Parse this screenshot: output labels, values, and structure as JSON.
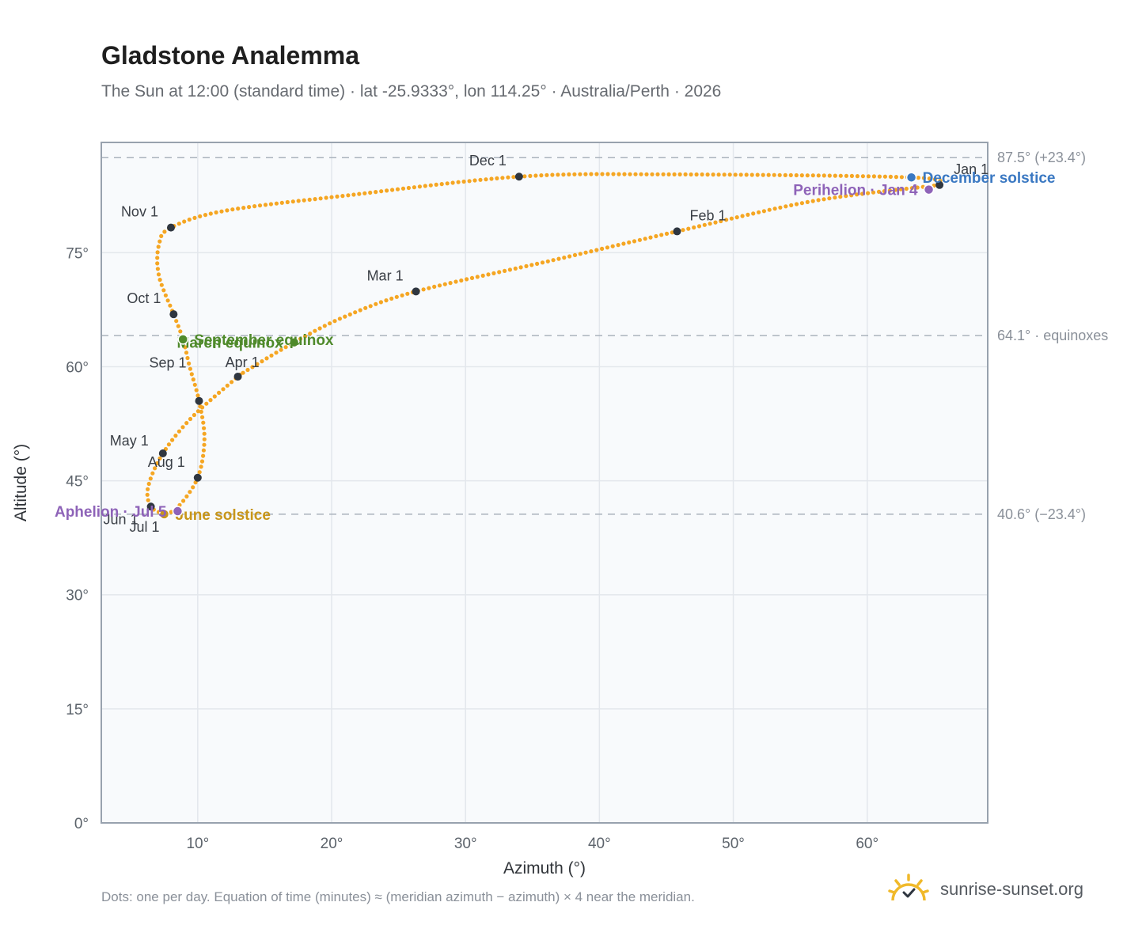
{
  "title": "Gladstone Analemma",
  "subtitle": "The Sun at 12:00 (standard time) · lat -25.9333°, lon 114.25° · Australia/Perth · 2026",
  "footnote": "Dots: one per day. Equation of time (minutes) ≈ (meridian azimuth − azimuth) × 4 near the meridian.",
  "brand": {
    "text": "sunrise-sunset.org",
    "icon": "sun-check-icon"
  },
  "colors": {
    "curve": "#f5a623",
    "month_marker": "#2f3640",
    "equinox": "#4f8a2b",
    "december_solstice": "#3a78c2",
    "june_solstice": "#c8961a",
    "apsis": "#8e63b8",
    "plot_bg": "#f8fafc",
    "grid": "#e3e7ec",
    "reference_line": "#aab3bd",
    "frame": "#98a2ae"
  },
  "chart_data": {
    "type": "scatter",
    "title": "Gladstone Analemma",
    "xlabel": "Azimuth (°)",
    "ylabel": "Altitude (°)",
    "xlim": [
      2.8,
      69
    ],
    "ylim": [
      0,
      89.5
    ],
    "x_ticks": [
      10,
      20,
      30,
      40,
      50,
      60
    ],
    "x_tick_labels": [
      "10°",
      "20°",
      "30°",
      "40°",
      "50°",
      "60°"
    ],
    "y_ticks": [
      0,
      15,
      30,
      45,
      60,
      75
    ],
    "y_tick_labels": [
      "0°",
      "15°",
      "30°",
      "45°",
      "60°",
      "75°"
    ],
    "grid": true,
    "marker_note": "one dot per day",
    "curve_keypoints": [
      {
        "date": "Jan 1",
        "az": 65.4,
        "alt": 83.9
      },
      {
        "date": "Jan 15",
        "az": 56.0,
        "alt": 81.8
      },
      {
        "date": "Feb 1",
        "az": 45.8,
        "alt": 77.8
      },
      {
        "date": "Feb 15",
        "az": 36.5,
        "alt": 74.0
      },
      {
        "date": "Mar 1",
        "az": 26.3,
        "alt": 69.9
      },
      {
        "date": "Mar 10",
        "az": 21.0,
        "alt": 66.6
      },
      {
        "date": "Mar 20",
        "az": 17.2,
        "alt": 63.2
      },
      {
        "date": "Mar 31",
        "az": 13.2,
        "alt": 59.0
      },
      {
        "date": "Apr 1",
        "az": 13.0,
        "alt": 58.7
      },
      {
        "date": "Apr 15",
        "az": 9.6,
        "alt": 53.4
      },
      {
        "date": "May 1",
        "az": 7.4,
        "alt": 48.6
      },
      {
        "date": "May 15",
        "az": 6.3,
        "alt": 44.2
      },
      {
        "date": "Jun 1",
        "az": 6.5,
        "alt": 41.6
      },
      {
        "date": "Jun 21",
        "az": 7.5,
        "alt": 40.6
      },
      {
        "date": "Jul 1",
        "az": 7.5,
        "alt": 40.6
      },
      {
        "date": "Jul 15",
        "az": 8.5,
        "alt": 41.5
      },
      {
        "date": "Aug 1",
        "az": 10.0,
        "alt": 45.4
      },
      {
        "date": "Aug 15",
        "az": 10.5,
        "alt": 50.5
      },
      {
        "date": "Sep 1",
        "az": 10.1,
        "alt": 55.5
      },
      {
        "date": "Sep 12",
        "az": 9.4,
        "alt": 60.0
      },
      {
        "date": "Sep 22",
        "az": 8.9,
        "alt": 63.6
      },
      {
        "date": "Oct 1",
        "az": 8.2,
        "alt": 66.9
      },
      {
        "date": "Oct 15",
        "az": 7.1,
        "alt": 72.0
      },
      {
        "date": "Oct 25",
        "az": 7.1,
        "alt": 76.0
      },
      {
        "date": "Nov 1",
        "az": 8.0,
        "alt": 78.3
      },
      {
        "date": "Nov 10",
        "az": 12.0,
        "alt": 80.5
      },
      {
        "date": "Nov 20",
        "az": 21.0,
        "alt": 82.5
      },
      {
        "date": "Dec 1",
        "az": 34.0,
        "alt": 85.0
      },
      {
        "date": "Dec 10",
        "az": 45.0,
        "alt": 85.3
      },
      {
        "date": "Dec 21",
        "az": 63.3,
        "alt": 84.9
      },
      {
        "date": "Dec 31",
        "az": 65.4,
        "alt": 83.9
      }
    ],
    "month_markers": [
      {
        "label": "Jan 1",
        "az": 65.4,
        "alt": 83.9
      },
      {
        "label": "Feb 1",
        "az": 45.8,
        "alt": 77.8
      },
      {
        "label": "Mar 1",
        "az": 26.3,
        "alt": 69.9
      },
      {
        "label": "Apr 1",
        "az": 13.0,
        "alt": 58.7
      },
      {
        "label": "May 1",
        "az": 7.4,
        "alt": 48.6
      },
      {
        "label": "Jun 1",
        "az": 6.5,
        "alt": 41.6
      },
      {
        "label": "Jul 1",
        "az": 7.5,
        "alt": 40.6
      },
      {
        "label": "Aug 1",
        "az": 10.0,
        "alt": 45.4
      },
      {
        "label": "Sep 1",
        "az": 10.1,
        "alt": 55.5
      },
      {
        "label": "Oct 1",
        "az": 8.2,
        "alt": 66.9
      },
      {
        "label": "Nov 1",
        "az": 8.0,
        "alt": 78.3
      },
      {
        "label": "Dec 1",
        "az": 34.0,
        "alt": 85.0
      }
    ],
    "events": [
      {
        "label": "March equinox",
        "az": 17.2,
        "alt": 63.2,
        "color": "#4f8a2b",
        "anchor": "end"
      },
      {
        "label": "September equinox",
        "az": 8.9,
        "alt": 63.6,
        "color": "#4f8a2b",
        "anchor": "start"
      },
      {
        "label": "December solstice",
        "az": 63.3,
        "alt": 84.9,
        "color": "#3a78c2",
        "anchor": "start"
      },
      {
        "label": "June solstice",
        "az": 7.5,
        "alt": 40.6,
        "color": "#c8961a",
        "anchor": "start"
      },
      {
        "label": "Perihelion · Jan 4",
        "az": 64.6,
        "alt": 83.3,
        "color": "#8e63b8",
        "anchor": "end"
      },
      {
        "label": "Aphelion · Jul 5",
        "az": 8.5,
        "alt": 41.0,
        "color": "#8e63b8",
        "anchor": "end"
      }
    ],
    "reference_lines": [
      {
        "alt": 87.5,
        "label": "87.5° (+23.4°)"
      },
      {
        "alt": 64.1,
        "label": "64.1° · equinoxes"
      },
      {
        "alt": 40.6,
        "label": "40.6° (−23.4°)"
      }
    ]
  }
}
